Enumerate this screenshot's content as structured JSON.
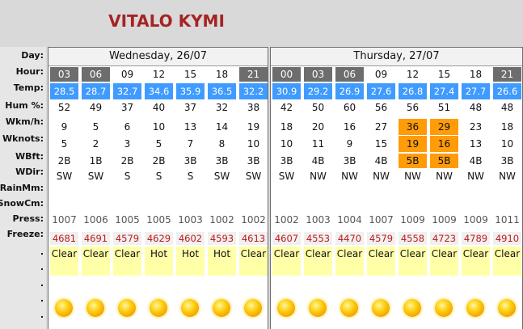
{
  "title": "VITALO KYMI",
  "labels": [
    "Day:",
    "Hour:",
    "Temp:",
    "Hum %:",
    "Wkm/h:",
    "Wknots:",
    "WBft:",
    "WDir:",
    "RainMm:",
    "SnowCm:",
    "Press:",
    "Freeze:",
    ".",
    ".",
    ".",
    ".",
    "."
  ],
  "days": [
    {
      "name": "Wednesday, 26/07",
      "hours": [
        "03",
        "06",
        "09",
        "12",
        "15",
        "18",
        "21"
      ],
      "temp": [
        "28.5",
        "28.7",
        "32.7",
        "34.6",
        "35.9",
        "36.5",
        "32.2"
      ],
      "hum": [
        "52",
        "49",
        "37",
        "40",
        "37",
        "32",
        "38"
      ],
      "wkm": [
        "9",
        "5",
        "6",
        "10",
        "13",
        "14",
        "19"
      ],
      "wkn": [
        "5",
        "2",
        "3",
        "5",
        "7",
        "8",
        "10"
      ],
      "wbft": [
        "2B",
        "1B",
        "2B",
        "2B",
        "3B",
        "3B",
        "3B"
      ],
      "wdir": [
        "SW",
        "SW",
        "S",
        "S",
        "S",
        "SW",
        "SW"
      ],
      "press": [
        "1007",
        "1006",
        "1005",
        "1005",
        "1003",
        "1002",
        "1002"
      ],
      "freeze": [
        "4681",
        "4691",
        "4579",
        "4629",
        "4602",
        "4593",
        "4613"
      ],
      "cond": [
        "Clear",
        "Clear",
        "Clear",
        "Hot",
        "Hot",
        "Hot",
        "Clear"
      ]
    },
    {
      "name": "Thursday, 27/07",
      "hours": [
        "00",
        "03",
        "06",
        "09",
        "12",
        "15",
        "18",
        "21"
      ],
      "temp": [
        "30.9",
        "29.2",
        "26.9",
        "27.6",
        "26.8",
        "27.4",
        "27.7",
        "26.6"
      ],
      "hum": [
        "42",
        "50",
        "60",
        "56",
        "56",
        "51",
        "48",
        "48"
      ],
      "wkm": [
        "18",
        "20",
        "16",
        "27",
        "36",
        "29",
        "23",
        "18"
      ],
      "wkn": [
        "10",
        "11",
        "9",
        "15",
        "19",
        "16",
        "13",
        "10"
      ],
      "wbft": [
        "3B",
        "4B",
        "3B",
        "4B",
        "5B",
        "5B",
        "4B",
        "3B"
      ],
      "wdir": [
        "SW",
        "NW",
        "NW",
        "NW",
        "NW",
        "NW",
        "NW",
        "NW"
      ],
      "press": [
        "1002",
        "1003",
        "1004",
        "1007",
        "1009",
        "1009",
        "1009",
        "1011"
      ],
      "freeze": [
        "4607",
        "4553",
        "4470",
        "4579",
        "4558",
        "4723",
        "4789",
        "4910"
      ],
      "cond": [
        "Clear",
        "Clear",
        "Clear",
        "Clear",
        "Clear",
        "Clear",
        "Clear",
        "Clear"
      ]
    }
  ],
  "colors": {
    "title": "#a72323",
    "temp_bg": "#3f9bff",
    "highlight": "#ff9c08",
    "dark_hour": "#6d6d6d",
    "freeze_text": "#c21a1a",
    "cond_bg": "#ffffa8"
  }
}
